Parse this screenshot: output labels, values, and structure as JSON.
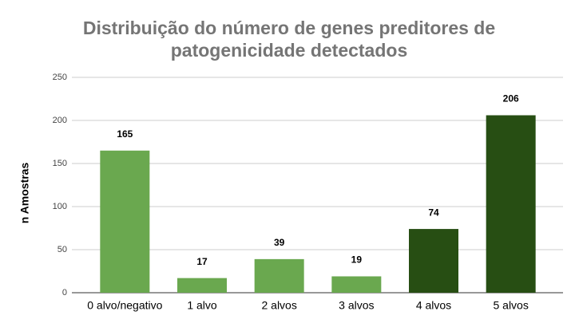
{
  "chart_data": {
    "type": "bar",
    "title": [
      "Distribuição do número de genes preditores de",
      "patogenicidade detectados"
    ],
    "y_label": "n Amostras",
    "categories": [
      "0 alvo/negativo",
      "1 alvo",
      "2 alvos",
      "3 alvos",
      "4 alvos",
      "5 alvos"
    ],
    "values": [
      165,
      17,
      39,
      19,
      74,
      206
    ],
    "colors": [
      "#6aa84f",
      "#6aa84f",
      "#6aa84f",
      "#6aa84f",
      "#274e13",
      "#274e13"
    ],
    "ylim": [
      0,
      250
    ],
    "yticks": [
      0,
      50,
      100,
      150,
      200,
      250
    ],
    "grid": true
  }
}
